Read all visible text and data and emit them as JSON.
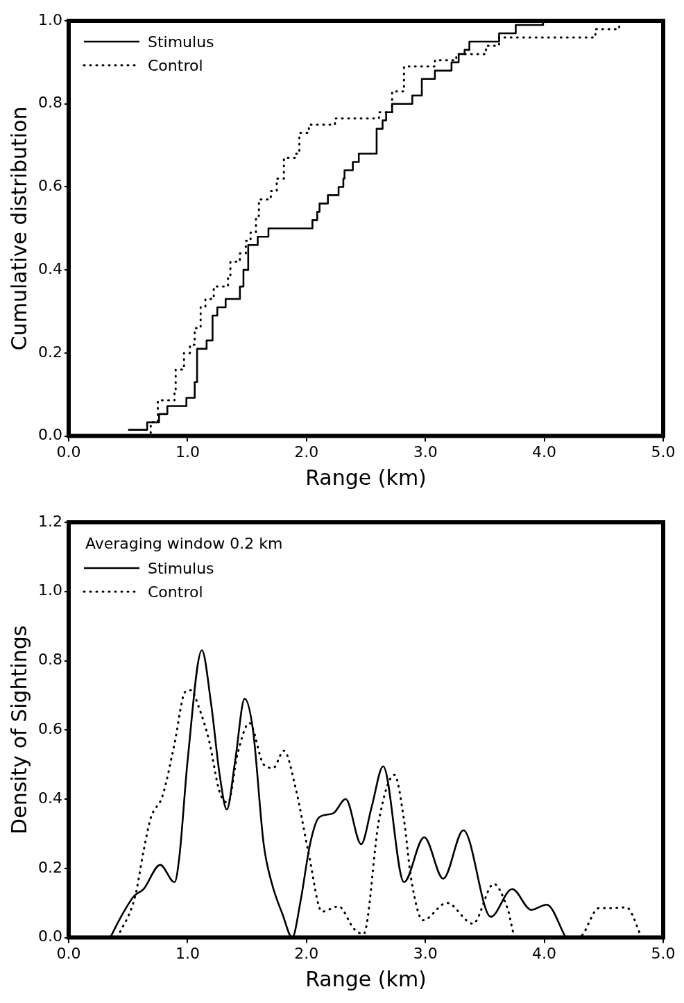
{
  "chart_data": [
    {
      "type": "step",
      "xlabel": "Range (km)",
      "ylabel": "Cumulative distribution",
      "legend": "top left",
      "grid": false,
      "marker": "none",
      "xlim": [
        0,
        5
      ],
      "xticks": [
        {
          "value": 0,
          "label": "0.0"
        },
        {
          "value": 1,
          "label": "1.0"
        },
        {
          "value": 2,
          "label": "2.0"
        },
        {
          "value": 3,
          "label": "3.0"
        },
        {
          "value": 4,
          "label": "4.0"
        },
        {
          "value": 5,
          "label": "5.0"
        }
      ],
      "ylim": [
        0,
        1
      ],
      "yticks": [
        {
          "value": 0,
          "label": "0.0"
        },
        {
          "value": 0.2,
          "label": "0.2"
        },
        {
          "value": 0.4,
          "label": "0.4"
        },
        {
          "value": 0.6,
          "label": "0.6"
        },
        {
          "value": 0.8,
          "label": "0.8"
        },
        {
          "value": 1,
          "label": "1.0"
        }
      ],
      "series": [
        {
          "name": "Stimulus",
          "color": "#000000",
          "line_style": "solid",
          "x": [
            0.5,
            0.66,
            0.76,
            0.83,
            0.99,
            1.06,
            1.08,
            1.16,
            1.21,
            1.25,
            1.32,
            1.44,
            1.47,
            1.51,
            1.59,
            1.68,
            2.05,
            2.09,
            2.11,
            2.18,
            2.27,
            2.31,
            2.32,
            2.39,
            2.44,
            2.59,
            2.64,
            2.67,
            2.72,
            2.89,
            2.97,
            3.08,
            3.22,
            3.28,
            3.33,
            3.37,
            3.62,
            3.76,
            3.99,
            4.0
          ],
          "values": [
            0.015,
            0.033,
            0.053,
            0.072,
            0.092,
            0.13,
            0.21,
            0.23,
            0.29,
            0.31,
            0.33,
            0.36,
            0.4,
            0.46,
            0.48,
            0.5,
            0.52,
            0.54,
            0.56,
            0.58,
            0.6,
            0.62,
            0.64,
            0.66,
            0.68,
            0.74,
            0.76,
            0.78,
            0.8,
            0.82,
            0.86,
            0.88,
            0.9,
            0.92,
            0.93,
            0.95,
            0.97,
            0.99,
            1.0,
            1.0
          ]
        },
        {
          "name": "Control",
          "color": "#000000",
          "line_style": "dotted",
          "x": [
            0.56,
            0.69,
            0.75,
            0.89,
            0.9,
            0.97,
            1.02,
            1.06,
            1.11,
            1.15,
            1.22,
            1.34,
            1.36,
            1.44,
            1.49,
            1.53,
            1.575,
            1.6,
            1.7,
            1.75,
            1.81,
            1.91,
            1.94,
            2.02,
            2.24,
            2.61,
            2.72,
            2.82,
            3.08,
            3.26,
            3.51,
            3.62,
            4.43,
            4.63,
            4.95
          ],
          "values": [
            0,
            0.033,
            0.086,
            0.105,
            0.16,
            0.2,
            0.22,
            0.26,
            0.31,
            0.33,
            0.36,
            0.38,
            0.42,
            0.44,
            0.47,
            0.49,
            0.53,
            0.57,
            0.59,
            0.62,
            0.67,
            0.68,
            0.73,
            0.75,
            0.765,
            0.78,
            0.83,
            0.89,
            0.905,
            0.92,
            0.94,
            0.96,
            0.98,
            1.0,
            1.0
          ]
        }
      ]
    },
    {
      "type": "line",
      "xlabel": "Range (km)",
      "ylabel": "Density of Sightings",
      "legend": "top left",
      "grid": false,
      "marker": "none",
      "annotations": [
        "Averaging window 0.2 km"
      ],
      "xlim": [
        0,
        5
      ],
      "xticks": [
        {
          "value": 0,
          "label": "0.0"
        },
        {
          "value": 1,
          "label": "1.0"
        },
        {
          "value": 2,
          "label": "2.0"
        },
        {
          "value": 3,
          "label": "3.0"
        },
        {
          "value": 4,
          "label": "4.0"
        },
        {
          "value": 5,
          "label": "5.0"
        }
      ],
      "ylim": [
        0,
        1.2
      ],
      "yticks": [
        {
          "value": 0,
          "label": "0.0"
        },
        {
          "value": 0.2,
          "label": "0.2"
        },
        {
          "value": 0.4,
          "label": "0.4"
        },
        {
          "value": 0.6,
          "label": "0.6"
        },
        {
          "value": 0.8,
          "label": "0.8"
        },
        {
          "value": 1,
          "label": "1.0"
        },
        {
          "value": 1.2,
          "label": "1.2"
        }
      ],
      "series": [
        {
          "name": "Stimulus",
          "color": "#000000",
          "line_style": "solid",
          "x": [
            0.35,
            0.45,
            0.55,
            0.63,
            0.77,
            0.89,
            0.93,
            1.0,
            1.12,
            1.2,
            1.27,
            1.33,
            1.4,
            1.48,
            1.55,
            1.64,
            1.71,
            1.8,
            1.88,
            1.95,
            2.03,
            2.1,
            2.17,
            2.23,
            2.33,
            2.46,
            2.55,
            2.645,
            2.82,
            2.99,
            3.15,
            3.32,
            3.55,
            3.73,
            3.89,
            4.02,
            4.18
          ],
          "values": [
            0,
            0.066,
            0.12,
            0.14,
            0.21,
            0.16,
            0.23,
            0.51,
            0.83,
            0.67,
            0.47,
            0.37,
            0.51,
            0.69,
            0.6,
            0.27,
            0.155,
            0.066,
            0,
            0.105,
            0.27,
            0.345,
            0.355,
            0.36,
            0.4,
            0.27,
            0.38,
            0.495,
            0.16,
            0.29,
            0.17,
            0.31,
            0.06,
            0.14,
            0.08,
            0.095,
            0
          ]
        },
        {
          "name": "Control",
          "color": "#000000",
          "line_style": "dotted",
          "x": [
            0.41,
            0.56,
            0.63,
            0.69,
            0.79,
            0.89,
            0.98,
            1.03,
            1.09,
            1.18,
            1.27,
            1.34,
            1.42,
            1.52,
            1.64,
            1.72,
            1.81,
            1.91,
            2.02,
            2.13,
            2.27,
            2.4,
            2.48,
            2.61,
            2.74,
            2.82,
            2.88,
            2.98,
            3.18,
            3.4,
            3.575,
            3.69,
            3.76,
            4.29,
            4.46,
            4.56,
            4.69,
            4.82
          ],
          "values": [
            0,
            0.12,
            0.25,
            0.345,
            0.41,
            0.56,
            0.71,
            0.715,
            0.67,
            0.57,
            0.42,
            0.39,
            0.53,
            0.62,
            0.5,
            0.49,
            0.54,
            0.43,
            0.24,
            0.075,
            0.09,
            0.025,
            0.01,
            0.34,
            0.47,
            0.34,
            0.17,
            0.05,
            0.1,
            0.04,
            0.155,
            0.085,
            0,
            0,
            0.085,
            0.085,
            0.087,
            0
          ]
        }
      ]
    }
  ]
}
